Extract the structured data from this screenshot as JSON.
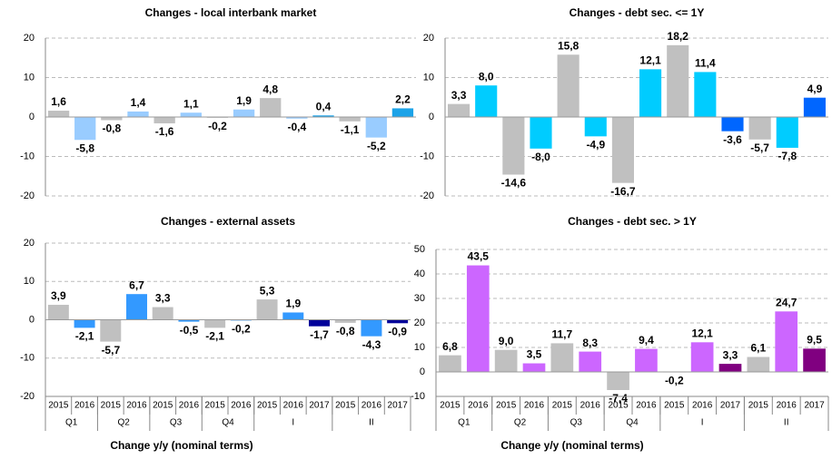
{
  "chart_data": [
    {
      "type": "bar",
      "title": "Changes - local interbank market",
      "values": [
        1.6,
        -5.8,
        -0.8,
        1.4,
        -1.6,
        1.1,
        -0.2,
        1.9,
        4.8,
        -0.4,
        0.4,
        -1.1,
        -5.2,
        2.2
      ],
      "value_labels": [
        "1,6",
        "-5,8",
        "-0,8",
        "1,4",
        "-1,6",
        "1,1",
        "-0,2",
        "1,9",
        "4,8",
        "-0,4",
        "0,4",
        "-1,1",
        "-5,2",
        "2,2"
      ],
      "colors": [
        "#c0c0c0",
        "#99ccff",
        "#c0c0c0",
        "#99ccff",
        "#c0c0c0",
        "#99ccff",
        "#c0c0c0",
        "#99ccff",
        "#c0c0c0",
        "#99ccff",
        "#1ca3e8",
        "#c0c0c0",
        "#99ccff",
        "#1ca3e8"
      ],
      "ylim": [
        -20,
        20
      ],
      "yticks": [
        -20,
        -10,
        0,
        10,
        20
      ],
      "grid": true
    },
    {
      "type": "bar",
      "title": "Changes - debt sec. <= 1Y",
      "values": [
        3.3,
        8.0,
        -14.6,
        -8.0,
        15.8,
        -4.9,
        -16.7,
        12.1,
        18.2,
        11.4,
        -3.6,
        -5.7,
        -7.8,
        4.9
      ],
      "value_labels": [
        "3,3",
        "8,0",
        "-14,6",
        "-8,0",
        "15,8",
        "-4,9",
        "-16,7",
        "12,1",
        "18,2",
        "11,4",
        "-3,6",
        "-5,7",
        "-7,8",
        "4,9"
      ],
      "colors": [
        "#c0c0c0",
        "#00ccff",
        "#c0c0c0",
        "#00ccff",
        "#c0c0c0",
        "#00ccff",
        "#c0c0c0",
        "#00ccff",
        "#c0c0c0",
        "#00ccff",
        "#0066ff",
        "#c0c0c0",
        "#00ccff",
        "#0066ff"
      ],
      "ylim": [
        -20,
        20
      ],
      "yticks": [
        -20,
        -10,
        0,
        10,
        20
      ],
      "grid": true
    },
    {
      "type": "bar",
      "title": "Changes - external assets",
      "values": [
        3.9,
        -2.1,
        -5.7,
        6.7,
        3.3,
        -0.5,
        -2.1,
        -0.2,
        5.3,
        1.9,
        -1.7,
        -0.8,
        -4.3,
        -0.9
      ],
      "value_labels": [
        "3,9",
        "-2,1",
        "-5,7",
        "6,7",
        "3,3",
        "-0,5",
        "-2,1",
        "-0,2",
        "5,3",
        "1,9",
        "-1,7",
        "-0,8",
        "-4,3",
        "-0,9"
      ],
      "colors": [
        "#c0c0c0",
        "#3399ff",
        "#c0c0c0",
        "#3399ff",
        "#c0c0c0",
        "#3399ff",
        "#c0c0c0",
        "#3399ff",
        "#c0c0c0",
        "#3399ff",
        "#000099",
        "#c0c0c0",
        "#3399ff",
        "#000099"
      ],
      "ylim": [
        -20,
        20
      ],
      "yticks": [
        -20,
        -10,
        0,
        10,
        20
      ],
      "grid": true,
      "groups": [
        {
          "name": "Q1",
          "categories": [
            "2015",
            "2016"
          ]
        },
        {
          "name": "Q2",
          "categories": [
            "2015",
            "2016"
          ]
        },
        {
          "name": "Q3",
          "categories": [
            "2015",
            "2016"
          ]
        },
        {
          "name": "Q4",
          "categories": [
            "2015",
            "2016"
          ]
        },
        {
          "name": "I",
          "categories": [
            "2015",
            "2016",
            "2017"
          ]
        },
        {
          "name": "II",
          "categories": [
            "2015",
            "2016",
            "2017"
          ]
        }
      ],
      "xlabel": "Change y/y (nominal terms)"
    },
    {
      "type": "bar",
      "title": "Changes - debt sec. > 1Y",
      "values": [
        6.8,
        43.5,
        9.0,
        3.5,
        11.7,
        8.3,
        -7.4,
        9.4,
        -0.2,
        12.1,
        3.3,
        6.1,
        24.7,
        9.5
      ],
      "value_labels": [
        "6,8",
        "43,5",
        "9,0",
        "3,5",
        "11,7",
        "8,3",
        "-7,4",
        "9,4",
        "-0,2",
        "12,1",
        "3,3",
        "6,1",
        "24,7",
        "9,5"
      ],
      "colors": [
        "#c0c0c0",
        "#cc66ff",
        "#c0c0c0",
        "#cc66ff",
        "#c0c0c0",
        "#cc66ff",
        "#c0c0c0",
        "#cc66ff",
        "#c0c0c0",
        "#cc66ff",
        "#800080",
        "#c0c0c0",
        "#cc66ff",
        "#800080"
      ],
      "ylim": [
        -10,
        50
      ],
      "yticks": [
        -10,
        0,
        10,
        20,
        30,
        40,
        50
      ],
      "grid": true,
      "groups": [
        {
          "name": "Q1",
          "categories": [
            "2015",
            "2016"
          ]
        },
        {
          "name": "Q2",
          "categories": [
            "2015",
            "2016"
          ]
        },
        {
          "name": "Q3",
          "categories": [
            "2015",
            "2016"
          ]
        },
        {
          "name": "Q4",
          "categories": [
            "2015",
            "2016"
          ]
        },
        {
          "name": "I",
          "categories": [
            "2015",
            "2016",
            "2017"
          ]
        },
        {
          "name": "II",
          "categories": [
            "2015",
            "2016",
            "2017"
          ]
        }
      ],
      "xlabel": "Change y/y (nominal terms)"
    }
  ]
}
